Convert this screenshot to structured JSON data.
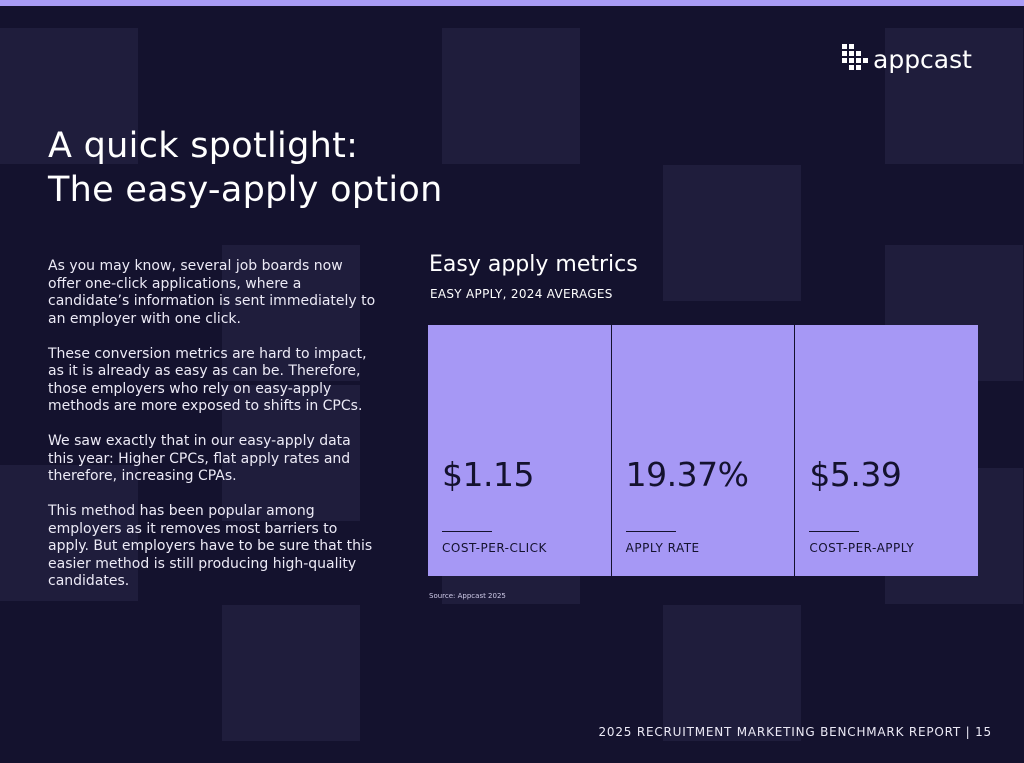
{
  "logo": {
    "text": "appcast"
  },
  "title": {
    "line1": "A quick spotlight:",
    "line2": "The easy-apply option"
  },
  "body": {
    "paragraphs": [
      "As you may know, several job boards now offer one-click applications, where a candidate’s information is sent immediately to an employer with one click.",
      "These conversion metrics are hard to impact, as it is already as easy as can be. Therefore, those employers who rely on easy-apply methods are more exposed to shifts in CPCs.",
      "We saw exactly that in our easy-apply data this year: Higher CPCs, flat apply rates and therefore, increasing CPAs.",
      "This method has been popular among employers as it removes most barriers to apply. But employers have to be sure that this easier method is still producing high-quality candidates."
    ]
  },
  "metrics": {
    "title": "Easy apply metrics",
    "subtitle": "EASY APPLY, 2024 AVERAGES",
    "cards": [
      {
        "value": "$1.15",
        "label": "COST-PER-CLICK"
      },
      {
        "value": "19.37%",
        "label": "APPLY RATE"
      },
      {
        "value": "$5.39",
        "label": "COST-PER-APPLY"
      }
    ],
    "source": "Source: Appcast 2025"
  },
  "footer": {
    "text": "2025 RECRUITMENT MARKETING BENCHMARK REPORT | 15"
  }
}
